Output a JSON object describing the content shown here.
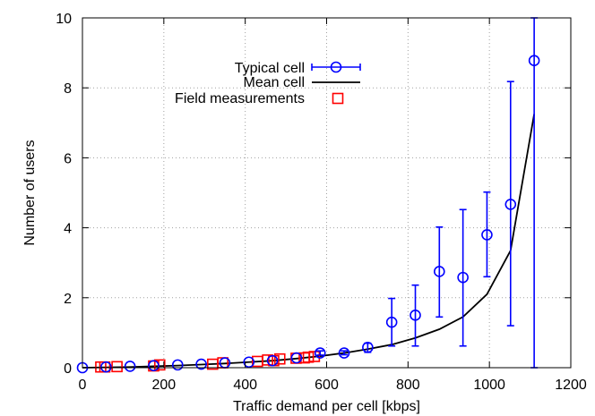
{
  "chart_data": {
    "type": "scatter",
    "xlabel": "Traffic demand per cell [kbps]",
    "ylabel": "Number of users",
    "xlim": [
      0,
      1200
    ],
    "ylim": [
      0,
      10
    ],
    "x_ticks": [
      0,
      200,
      400,
      600,
      800,
      1000,
      1200
    ],
    "y_ticks": [
      0,
      2,
      4,
      6,
      8,
      10
    ],
    "grid": true,
    "legend_position": "top-left",
    "series": [
      {
        "name": "Typical cell",
        "style": "circle-errorbar",
        "color": "#0000ff",
        "x": [
          0,
          58,
          117,
          175,
          234,
          292,
          350,
          409,
          467,
          526,
          584,
          643,
          701,
          760,
          818,
          877,
          935,
          994,
          1052,
          1110
        ],
        "y": [
          0.0,
          0.02,
          0.04,
          0.06,
          0.08,
          0.1,
          0.14,
          0.16,
          0.2,
          0.28,
          0.42,
          0.42,
          0.58,
          1.3,
          1.5,
          2.75,
          2.58,
          3.8,
          4.67,
          8.78
        ],
        "y_low": [
          0.0,
          0.02,
          0.04,
          0.06,
          0.08,
          0.1,
          0.14,
          0.16,
          0.2,
          0.28,
          0.36,
          0.37,
          0.44,
          0.62,
          0.62,
          1.45,
          0.62,
          2.6,
          1.2,
          0.0
        ],
        "y_high": [
          0.0,
          0.02,
          0.04,
          0.06,
          0.08,
          0.1,
          0.14,
          0.16,
          0.2,
          0.28,
          0.48,
          0.48,
          0.7,
          1.98,
          2.36,
          4.02,
          4.52,
          5.02,
          8.18,
          10.0
        ]
      },
      {
        "name": "Mean cell",
        "style": "line",
        "color": "#000000",
        "x": [
          0,
          58,
          117,
          175,
          234,
          292,
          350,
          409,
          467,
          526,
          584,
          643,
          701,
          760,
          818,
          877,
          935,
          994,
          1052,
          1110
        ],
        "y": [
          0.0,
          0.01,
          0.02,
          0.04,
          0.06,
          0.09,
          0.12,
          0.16,
          0.2,
          0.26,
          0.33,
          0.42,
          0.53,
          0.66,
          0.85,
          1.1,
          1.45,
          2.1,
          3.35,
          7.25
        ]
      },
      {
        "name": "Field measurements",
        "style": "square",
        "color": "#ff0000",
        "x": [
          45,
          55,
          85,
          175,
          190,
          320,
          345,
          430,
          455,
          470,
          485,
          525,
          545,
          555,
          570
        ],
        "y": [
          0.02,
          0.02,
          0.03,
          0.05,
          0.08,
          0.1,
          0.14,
          0.18,
          0.22,
          0.2,
          0.25,
          0.27,
          0.28,
          0.3,
          0.32
        ]
      }
    ]
  }
}
